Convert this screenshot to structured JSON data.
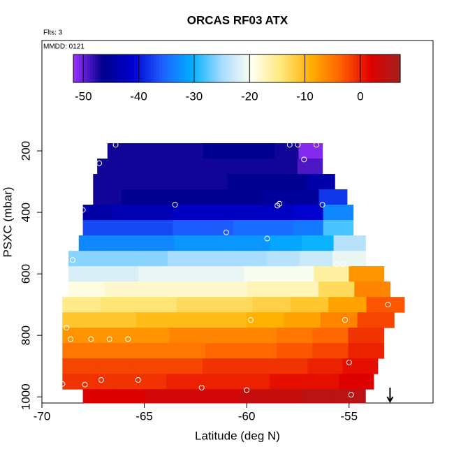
{
  "chart_data": {
    "type": "heatmap",
    "title": "ORCAS RF03 ATX",
    "annotations": [
      "Flts: 3",
      "MMDD: 0121"
    ],
    "xlabel": "Latitude (deg N)",
    "ylabel": "PSXC (mbar)",
    "xlim": [
      -70,
      -50.9
    ],
    "xticks": [
      -70,
      -65,
      -60,
      -55
    ],
    "ylim": [
      1020,
      -159
    ],
    "yticks": [
      200,
      400,
      600,
      800,
      1000
    ],
    "colorbar": {
      "lim": [
        -51.8,
        7.2
      ],
      "ticks": [
        -50,
        -40,
        -30,
        -20,
        -10,
        0
      ],
      "colors": [
        "#9b30ff",
        "#00008b",
        "#0000cd",
        "#1e60ff",
        "#00b0ff",
        "#a8dcff",
        "#fffff0",
        "#ffe87a",
        "#ffb000",
        "#ff6000",
        "#e00000",
        "#a02020"
      ]
    },
    "row_height": 50,
    "rows": [
      {
        "p": 200,
        "lon": [
          -66.8,
          -56.3
        ],
        "values": [
          -47,
          -47,
          -47,
          -47,
          -46,
          -46,
          -46,
          -47,
          -51
        ]
      },
      {
        "p": 250,
        "lon": [
          -67.3,
          -56.3
        ],
        "values": [
          -47,
          -47,
          -47,
          -47,
          -47,
          -47,
          -47,
          -47,
          -49
        ]
      },
      {
        "p": 300,
        "lon": [
          -67.5,
          -55.7
        ],
        "values": [
          -47,
          -47,
          -47,
          -47,
          -47,
          -46,
          -46,
          -46,
          -44
        ]
      },
      {
        "p": 350,
        "lon": [
          -67.5,
          -55.1
        ],
        "values": [
          -47,
          -46,
          -46,
          -46,
          -46,
          -46,
          -45,
          -45,
          -38
        ]
      },
      {
        "p": 400,
        "lon": [
          -68,
          -54.8
        ],
        "values": [
          -44,
          -43,
          -43,
          -42,
          -42,
          -42,
          -42,
          -41,
          -33
        ]
      },
      {
        "p": 450,
        "lon": [
          -68,
          -54.8
        ],
        "values": [
          -37,
          -37,
          -37,
          -36,
          -36,
          -35,
          -35,
          -34,
          -28
        ]
      },
      {
        "p": 500,
        "lon": [
          -68.2,
          -54.2
        ],
        "values": [
          -33,
          -33,
          -33,
          -32,
          -32,
          -32,
          -31,
          -30,
          -24
        ]
      },
      {
        "p": 550,
        "lon": [
          -68.7,
          -54.2
        ],
        "values": [
          -26,
          -26,
          -26,
          -25,
          -25,
          -25,
          -24,
          -23,
          -21
        ]
      },
      {
        "p": 600,
        "lon": [
          -68.7,
          -53.3
        ],
        "values": [
          -22,
          -22,
          -21,
          -21,
          -21,
          -20,
          -20,
          -16,
          -7
        ]
      },
      {
        "p": 650,
        "lon": [
          -68.7,
          -53
        ],
        "values": [
          -19,
          -18,
          -18,
          -18,
          -18,
          -17,
          -17,
          -13,
          -6
        ]
      },
      {
        "p": 700,
        "lon": [
          -69,
          -52.3
        ],
        "values": [
          -15,
          -14,
          -14,
          -13,
          -13,
          -12,
          -11,
          -8,
          -3
        ]
      },
      {
        "p": 750,
        "lon": [
          -69,
          -52.8
        ],
        "values": [
          -11,
          -11,
          -10,
          -10,
          -10,
          -9,
          -8,
          -6,
          -2
        ]
      },
      {
        "p": 800,
        "lon": [
          -69,
          -53.3
        ],
        "values": [
          -7,
          -7,
          -7,
          -6,
          -6,
          -6,
          -5,
          -4,
          -1
        ]
      },
      {
        "p": 850,
        "lon": [
          -69,
          -53.3
        ],
        "values": [
          -5,
          -5,
          -5,
          -5,
          -4,
          -4,
          -3,
          -2,
          0
        ]
      },
      {
        "p": 900,
        "lon": [
          -69,
          -53.6
        ],
        "values": [
          -2,
          -2,
          -2,
          -2,
          -1,
          -1,
          -1,
          0,
          1
        ]
      },
      {
        "p": 950,
        "lon": [
          -69,
          -53.8
        ],
        "values": [
          -1,
          -1,
          -1,
          0,
          0,
          0,
          1,
          1,
          2
        ]
      },
      {
        "p": 1000,
        "lon": [
          -68,
          -54.2
        ],
        "values": [
          2,
          2,
          3,
          3,
          3,
          4,
          4,
          5,
          5
        ]
      }
    ],
    "points": {
      "x": [
        -66.4,
        -57.9,
        -57.5,
        -56.6,
        -57.2,
        -67.2,
        -63.5,
        -58.5,
        -58.4,
        -56.3,
        -68,
        -61,
        -59,
        -68.5,
        -55.6,
        -55.3,
        -53.1,
        -59.8,
        -55.2,
        -68.8,
        -68.6,
        -67.6,
        -66.7,
        -65.8,
        -55,
        -69,
        -67.9,
        -67.1,
        -65.3,
        -62.2,
        -60,
        -54.9
      ],
      "y": [
        180,
        180,
        180,
        180,
        228,
        240,
        375,
        378,
        372,
        375,
        392,
        465,
        485,
        555,
        568,
        568,
        700,
        750,
        750,
        775,
        812,
        812,
        812,
        812,
        888,
        958,
        960,
        945,
        945,
        970,
        978,
        993
      ]
    },
    "arrow_x": -53
  }
}
